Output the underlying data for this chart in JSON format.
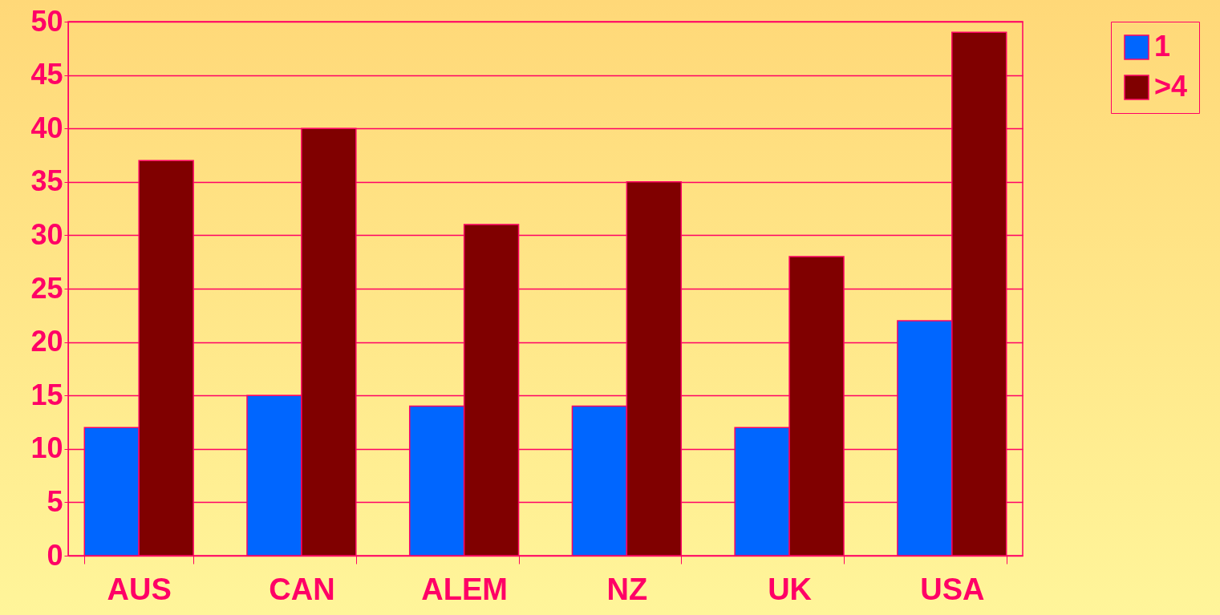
{
  "chart_data": {
    "type": "bar",
    "categories": [
      "AUS",
      "CAN",
      "ALEM",
      "NZ",
      "UK",
      "USA"
    ],
    "series": [
      {
        "name": "1",
        "color": "#0066ff",
        "values": [
          12,
          15,
          14,
          14,
          12,
          22
        ]
      },
      {
        "name": ">4",
        "color": "#800000",
        "values": [
          37,
          40,
          31,
          35,
          28,
          49
        ]
      }
    ],
    "ylim": [
      0,
      50
    ],
    "yticks": [
      0,
      5,
      10,
      15,
      20,
      25,
      30,
      35,
      40,
      45,
      50
    ],
    "grid": "y",
    "legend": "right"
  }
}
